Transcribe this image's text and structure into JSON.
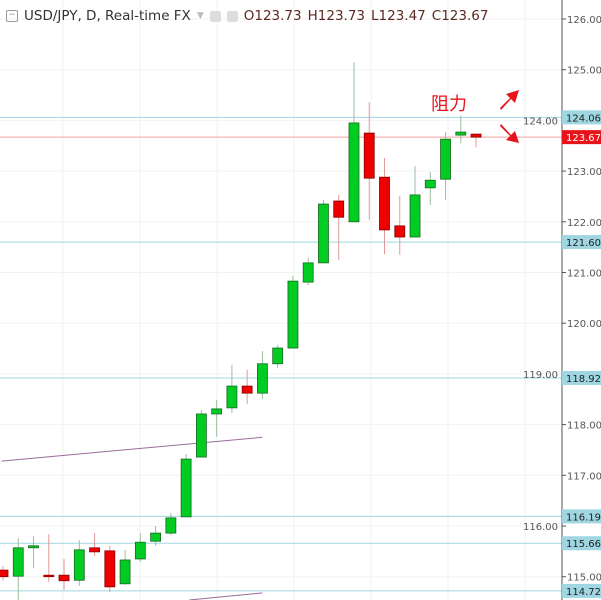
{
  "header": {
    "symbol": "USD/JPY, D, Real-time FX",
    "open": "O123.73",
    "high": "H123.73",
    "low": "L123.47",
    "close": "C123.67"
  },
  "chart_data": {
    "type": "candlestick",
    "ylim": [
      114.6,
      126.3
    ],
    "y_ticks": [
      "126.00",
      "125.00",
      "124.00",
      "123.00",
      "122.00",
      "121.00",
      "120.00",
      "119.00",
      "118.00",
      "117.00",
      "116.00",
      "115.00"
    ],
    "candles": [
      [
        115.13,
        115.21,
        114.93,
        115.0
      ],
      [
        115.01,
        115.76,
        114.54,
        115.57
      ],
      [
        115.57,
        115.8,
        115.17,
        115.61
      ],
      [
        115.03,
        115.84,
        114.9,
        115.02
      ],
      [
        115.03,
        115.35,
        114.74,
        114.92
      ],
      [
        114.93,
        115.72,
        114.82,
        115.53
      ],
      [
        115.57,
        115.86,
        115.41,
        115.49
      ],
      [
        115.51,
        115.61,
        114.7,
        114.8
      ],
      [
        114.86,
        115.53,
        114.84,
        115.33
      ],
      [
        115.35,
        115.86,
        115.29,
        115.68
      ],
      [
        115.7,
        116.0,
        115.61,
        115.86
      ],
      [
        115.86,
        116.26,
        115.82,
        116.16
      ],
      [
        116.18,
        117.42,
        116.18,
        117.32
      ],
      [
        117.36,
        118.29,
        117.36,
        118.21
      ],
      [
        118.21,
        118.49,
        117.76,
        118.31
      ],
      [
        118.33,
        119.18,
        118.23,
        118.76
      ],
      [
        118.76,
        119.08,
        118.41,
        118.62
      ],
      [
        118.62,
        119.45,
        118.5,
        119.2
      ],
      [
        119.2,
        119.57,
        119.12,
        119.51
      ],
      [
        119.51,
        120.93,
        119.51,
        120.83
      ],
      [
        120.81,
        121.29,
        120.75,
        121.19
      ],
      [
        121.19,
        122.43,
        121.19,
        122.35
      ],
      [
        122.41,
        122.53,
        121.25,
        122.09
      ],
      [
        122.0,
        125.15,
        122.0,
        123.95
      ],
      [
        123.75,
        124.36,
        122.04,
        122.86
      ],
      [
        122.88,
        123.26,
        121.36,
        121.84
      ],
      [
        121.92,
        122.51,
        121.35,
        121.7
      ],
      [
        121.7,
        123.1,
        121.7,
        122.53
      ],
      [
        122.67,
        122.98,
        122.33,
        122.82
      ],
      [
        122.84,
        123.77,
        122.43,
        123.63
      ],
      [
        123.71,
        124.09,
        123.55,
        123.77
      ],
      [
        123.73,
        123.73,
        123.47,
        123.67
      ]
    ],
    "levels": [
      {
        "value": 124.06,
        "label": "124.06"
      },
      {
        "value": 121.6,
        "label": "121.60"
      },
      {
        "value": 118.92,
        "label": "118.92"
      },
      {
        "value": 116.19,
        "label": "116.19"
      },
      {
        "value": 115.66,
        "label": "115.66"
      },
      {
        "value": 114.72,
        "label": "114.72"
      }
    ],
    "last_price": {
      "value": 123.67,
      "label": "123.67"
    },
    "trendlines": [
      {
        "from": [
          -0.1,
          117.28
        ],
        "to": [
          17,
          117.75
        ]
      },
      {
        "from": [
          12.2,
          114.54
        ],
        "to": [
          17,
          114.68
        ]
      }
    ],
    "annotation": "阻力",
    "colors": {
      "up": "#00cc22",
      "down": "#ee0000",
      "level": "#9fd6e2",
      "last": "#e8141c",
      "trend": "#9b6b9e",
      "annotation": "#e8141c"
    }
  }
}
